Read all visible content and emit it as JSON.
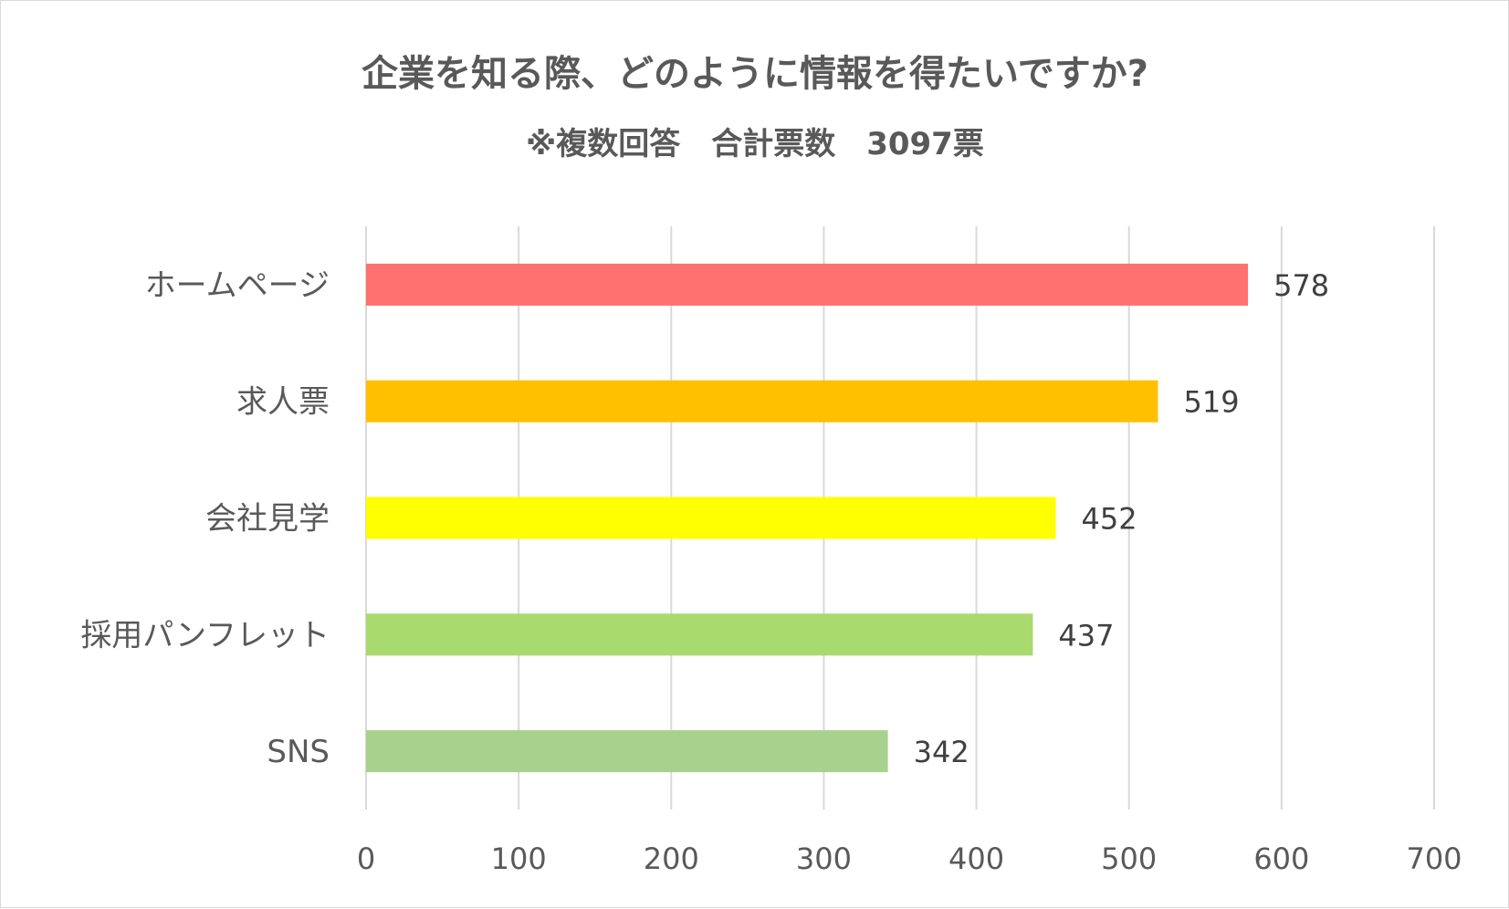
{
  "chart_data": {
    "type": "bar",
    "orientation": "horizontal",
    "title": "企業を知る際、どのように情報を得たいですか?",
    "subtitle": "※複数回答　合計票数　3097票",
    "categories": [
      "ホームページ",
      "求人票",
      "会社見学",
      "採用パンフレット",
      "SNS"
    ],
    "values": [
      578,
      519,
      452,
      437,
      342
    ],
    "bar_colors": [
      "#ff7070",
      "#ffc000",
      "#ffff00",
      "#a9da6e",
      "#a9d18e"
    ],
    "xlim": [
      0,
      700
    ],
    "x_ticks": [
      0,
      100,
      200,
      300,
      400,
      500,
      600,
      700
    ],
    "grid": true,
    "grid_color": "#d9d9d9",
    "data_labels": true,
    "legend": "none"
  }
}
